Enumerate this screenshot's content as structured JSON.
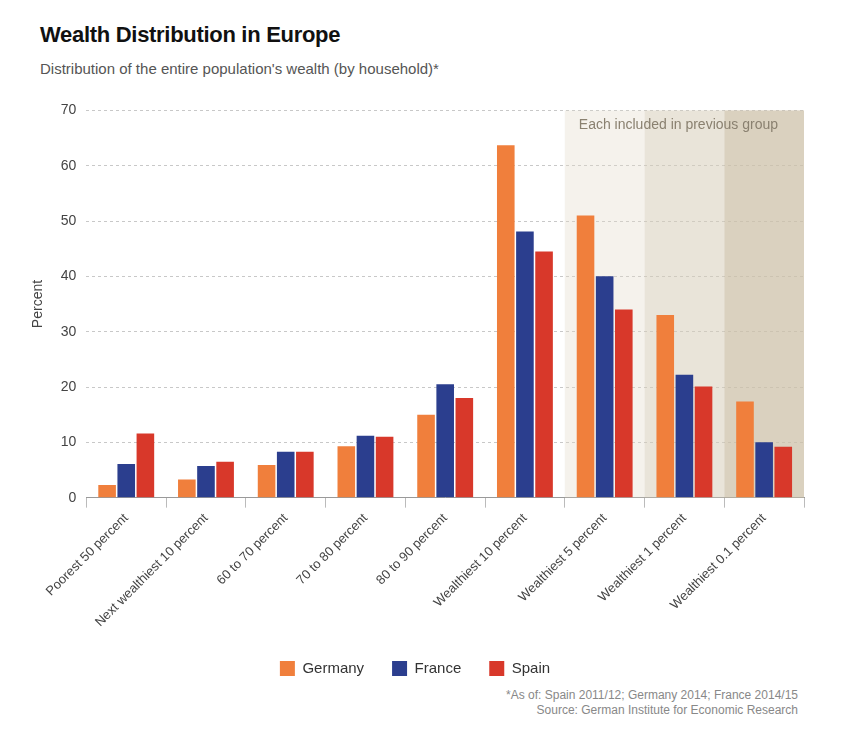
{
  "chart_data": {
    "type": "bar",
    "title": "Wealth Distribution in Europe",
    "subtitle": "Distribution of the entire population's wealth (by household)*",
    "y_label": "Percent",
    "categories": [
      "Poorest 50 percent",
      "Next wealthiest 10 percent",
      "60 to 70 percent",
      "70 to 80 percent",
      "80 to 90 percent",
      "Wealthiest 10 percent",
      "Wealthiest 5 percent",
      "Wealthiest 1 percent",
      "Wealthiest 0.1 percent"
    ],
    "series": [
      {
        "name": "Germany",
        "color": "#f07f3c",
        "values": [
          2.3,
          3.3,
          5.9,
          9.3,
          15.0,
          63.7,
          51.0,
          33.0,
          17.4
        ]
      },
      {
        "name": "France",
        "color": "#2b3e8e",
        "values": [
          6.1,
          5.7,
          8.3,
          11.2,
          20.5,
          48.1,
          40.0,
          22.2,
          10.0
        ]
      },
      {
        "name": "Spain",
        "color": "#d8382a",
        "values": [
          11.6,
          6.5,
          8.3,
          11.0,
          18.0,
          44.5,
          34.0,
          20.1,
          9.2
        ]
      }
    ],
    "ylim": [
      0,
      70
    ],
    "yticks": [
      0,
      10,
      20,
      30,
      40,
      50,
      60,
      70
    ],
    "grid": true,
    "legend": "bottom",
    "annotations": [
      {
        "text": "Each included in previous group",
        "categories": [
          "Wealthiest 5 percent",
          "Wealthiest 1 percent",
          "Wealthiest 0.1 percent"
        ]
      }
    ],
    "footnote": "*As of: Spain 2011/12; Germany 2014; France 2014/15",
    "source": "Source: German Institute for Economic Research"
  }
}
